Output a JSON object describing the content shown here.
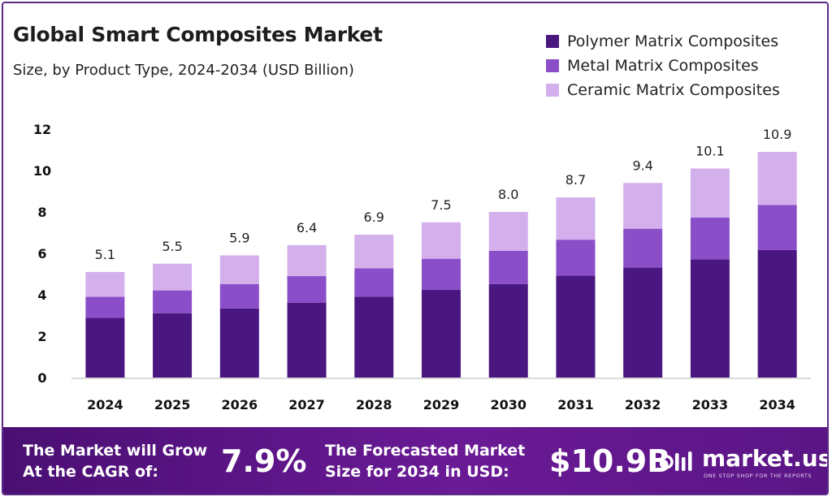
{
  "header": {
    "title": "Global Smart Composites Market",
    "subtitle": "Size, by Product Type, 2024-2034 (USD Billion)"
  },
  "legend": [
    {
      "label": "Polymer Matrix Composites",
      "color": "#4a1680"
    },
    {
      "label": "Metal Matrix Composites",
      "color": "#8a4ec8"
    },
    {
      "label": "Ceramic Matrix Composites",
      "color": "#d3b0ec"
    }
  ],
  "chart_data": {
    "type": "bar",
    "stacked": true,
    "categories": [
      "2024",
      "2025",
      "2026",
      "2027",
      "2028",
      "2029",
      "2030",
      "2031",
      "2032",
      "2033",
      "2034"
    ],
    "series": [
      {
        "name": "Polymer Matrix Composites",
        "values": [
          2.88,
          3.11,
          3.34,
          3.62,
          3.9,
          4.24,
          4.52,
          4.92,
          5.31,
          5.71,
          6.16
        ]
      },
      {
        "name": "Metal Matrix Composites",
        "values": [
          1.02,
          1.1,
          1.18,
          1.28,
          1.38,
          1.5,
          1.6,
          1.74,
          1.88,
          2.02,
          2.18
        ]
      },
      {
        "name": "Ceramic Matrix Composites",
        "values": [
          1.2,
          1.29,
          1.38,
          1.5,
          1.62,
          1.76,
          1.88,
          2.04,
          2.21,
          2.37,
          2.56
        ]
      }
    ],
    "totals": [
      "5.1",
      "5.5",
      "5.9",
      "6.4",
      "6.9",
      "7.5",
      "8.0",
      "8.7",
      "9.4",
      "10.1",
      "10.9"
    ],
    "yticks": [
      0,
      2,
      4,
      6,
      8,
      10,
      12
    ],
    "ylim": [
      0,
      12
    ],
    "grid": false,
    "legend_position": "top-right"
  },
  "footer": {
    "cagr_label_line1": "The Market will Grow",
    "cagr_label_line2": "At the CAGR of:",
    "cagr_value": "7.9%",
    "forecast_label_line1": "The Forecasted Market",
    "forecast_label_line2": "Size for 2034 in USD:",
    "forecast_value": "$10.9B",
    "brand": "market.us",
    "brand_tagline": "ONE STOP SHOP FOR THE REPORTS"
  }
}
